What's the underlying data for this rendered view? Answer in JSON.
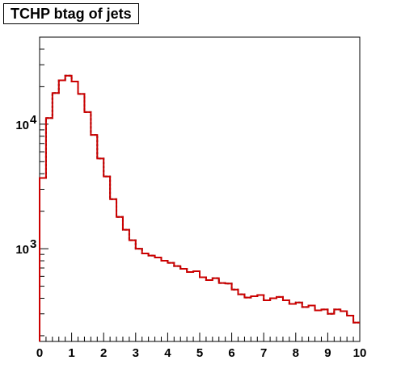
{
  "chart_data": {
    "type": "histogram",
    "title": "TCHP btag of jets",
    "xlabel": "",
    "ylabel": "",
    "xlim": [
      0,
      10
    ],
    "ylim": [
      180,
      50000
    ],
    "yscale": "log",
    "grid": false,
    "legend": "none",
    "bin_edges": [
      0,
      0.2,
      0.4,
      0.6,
      0.8,
      1.0,
      1.2,
      1.4,
      1.6,
      1.8,
      2.0,
      2.2,
      2.4,
      2.6,
      2.8,
      3.0,
      3.2,
      3.4,
      3.6,
      3.8,
      4.0,
      4.2,
      4.4,
      4.6,
      4.8,
      5.0,
      5.2,
      5.4,
      5.6,
      5.8,
      6.0,
      6.2,
      6.4,
      6.6,
      6.8,
      7.0,
      7.2,
      7.4,
      7.6,
      7.8,
      8.0,
      8.2,
      8.4,
      8.6,
      8.8,
      9.0,
      9.2,
      9.4,
      9.6,
      9.8,
      10.0
    ],
    "x_ticks": [
      "0",
      "1",
      "2",
      "3",
      "4",
      "5",
      "6",
      "7",
      "8",
      "9",
      "10"
    ],
    "y_ticks": [
      {
        "value": 1000,
        "base": "10",
        "exp": "3"
      },
      {
        "value": 10000,
        "base": "10",
        "exp": "4"
      }
    ],
    "series": [
      {
        "style": "dashed",
        "color": "#000000",
        "values": [
          3700,
          11200,
          17800,
          22500,
          24500,
          22000,
          17500,
          12500,
          8200,
          5300,
          3800,
          2500,
          1800,
          1420,
          1170,
          1000,
          915,
          880,
          850,
          800,
          770,
          725,
          690,
          650,
          660,
          590,
          560,
          580,
          530,
          525,
          470,
          430,
          405,
          415,
          425,
          385,
          400,
          410,
          385,
          360,
          370,
          340,
          350,
          320,
          325,
          300,
          325,
          315,
          290,
          255
        ]
      },
      {
        "style": "solid",
        "color": "#cc0000",
        "values": [
          3700,
          11200,
          17800,
          22500,
          24500,
          22000,
          17500,
          12500,
          8200,
          5300,
          3800,
          2500,
          1800,
          1420,
          1170,
          1000,
          915,
          880,
          850,
          800,
          770,
          725,
          690,
          650,
          660,
          590,
          560,
          580,
          530,
          525,
          470,
          430,
          405,
          415,
          425,
          385,
          400,
          410,
          385,
          360,
          370,
          340,
          350,
          320,
          325,
          300,
          325,
          315,
          290,
          255
        ]
      }
    ]
  }
}
